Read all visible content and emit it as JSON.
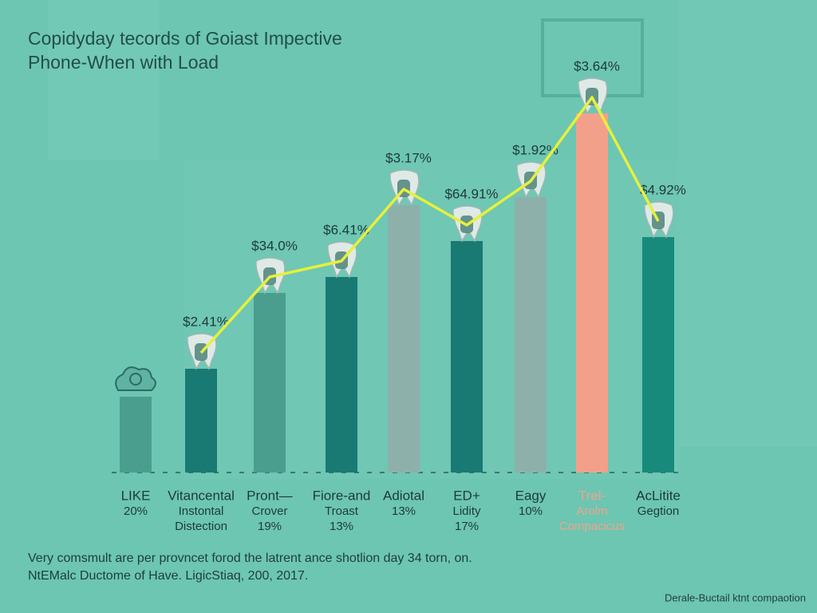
{
  "chart_data": {
    "type": "bar",
    "title": [
      "Copidyday tecords of Goiast Impective",
      "Phone-When with Load"
    ],
    "categories": [
      [
        "LIKE",
        "20%"
      ],
      [
        "Vitancental",
        "Instontal",
        "Distection"
      ],
      [
        "Pront—",
        "Crover",
        "19%"
      ],
      [
        "Fiore-and",
        "Troast",
        "13%"
      ],
      [
        "Adiotal",
        "13%"
      ],
      [
        "ED+",
        "Lidity",
        "17%"
      ],
      [
        "Eagy",
        "10%"
      ],
      [
        "Trel-",
        "Arolm",
        "Compacicus"
      ],
      [
        "AcLitite",
        "Gegtion"
      ]
    ],
    "values": [
      19,
      26,
      45,
      49,
      67,
      58,
      69,
      90,
      59
    ],
    "colors": [
      "#4a9e8e",
      "#187a72",
      "#4a9e8e",
      "#187a72",
      "#8eb0aa",
      "#187a72",
      "#8eb0aa",
      "#f2a08a",
      "#178a7c"
    ],
    "bar_labels": [
      null,
      "$2.41%",
      "$34.0%",
      "$6.41%",
      "$3.17%",
      "$64.91%",
      "$1.92%",
      "$3.64%",
      "$4.92%"
    ],
    "line_color": "#e6f03c",
    "ylim": [
      0,
      100
    ],
    "footnotes": [
      "Very comsmult are per provncet forod the latrent ance shotlion day 34 torn, on.",
      "NtEMalc Ductome of Have. LigicStiaq, 200, 2017."
    ],
    "credit": "Derale-Buctail ktnt compaotion"
  }
}
